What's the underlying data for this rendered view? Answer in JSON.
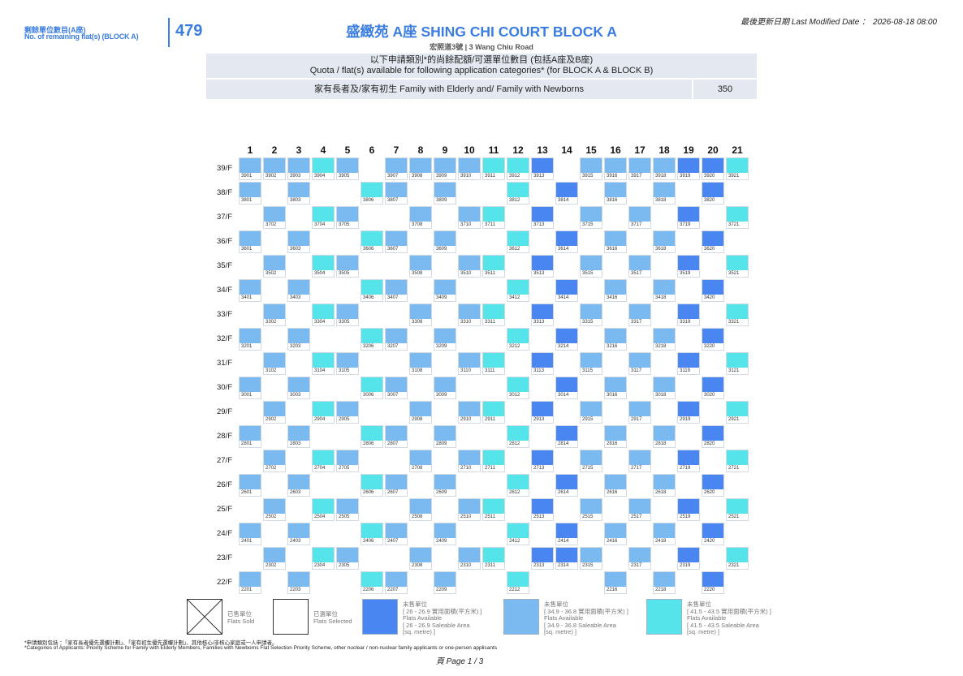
{
  "colors": {
    "accent": "#3b7de0"
  },
  "header": {
    "remaining_label_zh": "剩餘單位數目(A座)",
    "remaining_label_en": "No. of remaining flat(s) (BLOCK A)",
    "remaining_count": "479",
    "title": "盛緻苑 A座 SHING CHI COURT BLOCK A",
    "address": "宏照道3號 | 3 Wang Chiu Road",
    "last_modified_label": "最後更新日期 Last Modified Date ：",
    "last_modified_value": "2026-08-18 08:00"
  },
  "quota": {
    "heading_zh": "以下申請類別*的尚餘配額/可選單位數目 (包括A座及B座)",
    "heading_en": "Quota / flat(s) available for following application categories* (for BLOCK A & BLOCK B)",
    "rows": [
      {
        "category": "家有長者及/家有初生 Family with Elderly and/ Family with Newborns",
        "value": "350"
      }
    ]
  },
  "columns": [
    "1",
    "2",
    "3",
    "4",
    "5",
    "6",
    "7",
    "8",
    "9",
    "10",
    "11",
    "12",
    "13",
    "14",
    "15",
    "16",
    "17",
    "18",
    "19",
    "20",
    "21"
  ],
  "floors": [
    {
      "label": "39/F",
      "units": [
        {
          "no": "3901",
          "area": "34.9 - 36.8"
        },
        {
          "no": "3902",
          "area": "34.9 - 36.8"
        },
        {
          "no": "3903",
          "area": "34.9 - 36.8"
        },
        {
          "no": "3904",
          "area": "41.5 - 43.5"
        },
        {
          "no": "3905",
          "area": "34.9 - 36.8"
        },
        {
          "no": "3907",
          "area": "34.9 - 36.8"
        },
        {
          "no": "3908",
          "area": "34.9 - 36.8"
        },
        {
          "no": "3909",
          "area": "34.9 - 36.8"
        },
        {
          "no": "3910",
          "area": "34.9 - 36.8"
        },
        {
          "no": "3911",
          "area": "41.5 - 43.5"
        },
        {
          "no": "3912",
          "area": "41.5 - 43.5"
        },
        {
          "no": "3913",
          "area": "26 - 26.9"
        },
        {
          "no": "3915",
          "area": "34.9 - 36.8"
        },
        {
          "no": "3916",
          "area": "34.9 - 36.8"
        },
        {
          "no": "3917",
          "area": "34.9 - 36.8"
        },
        {
          "no": "3918",
          "area": "34.9 - 36.8"
        },
        {
          "no": "3919",
          "area": "26 - 26.9"
        },
        {
          "no": "3920",
          "area": "26 - 26.9"
        },
        {
          "no": "3921",
          "area": "41.5 - 43.5"
        }
      ]
    },
    {
      "label": "38/F",
      "units": [
        {
          "no": "3801",
          "area": "34.9 - 36.8"
        },
        {
          "no": "3803",
          "area": "34.9 - 36.8"
        },
        {
          "no": "3806",
          "area": "41.5 - 43.5"
        },
        {
          "no": "3807",
          "area": "34.9 - 36.8"
        },
        {
          "no": "3809",
          "area": "34.9 - 36.8"
        },
        {
          "no": "3812",
          "area": "41.5 - 43.5"
        },
        {
          "no": "3814",
          "area": "26 - 26.9"
        },
        {
          "no": "3816",
          "area": "34.9 - 36.8"
        },
        {
          "no": "3818",
          "area": "34.9 - 36.8"
        },
        {
          "no": "3820",
          "area": "26 - 26.9"
        }
      ]
    },
    {
      "label": "37/F",
      "units": [
        {
          "no": "3702",
          "area": "34.9 - 36.8"
        },
        {
          "no": "3704",
          "area": "41.5 - 43.5"
        },
        {
          "no": "3705",
          "area": "34.9 - 36.8"
        },
        {
          "no": "3708",
          "area": "34.9 - 36.8"
        },
        {
          "no": "3710",
          "area": "34.9 - 36.8"
        },
        {
          "no": "3711",
          "area": "41.5 - 43.5"
        },
        {
          "no": "3713",
          "area": "26 - 26.9"
        },
        {
          "no": "3715",
          "area": "34.9 - 36.8"
        },
        {
          "no": "3717",
          "area": "34.9 - 36.8"
        },
        {
          "no": "3719",
          "area": "26 - 26.9"
        },
        {
          "no": "3721",
          "area": "41.5 - 43.5"
        }
      ]
    },
    {
      "label": "36/F",
      "units": [
        {
          "no": "3601",
          "area": "34.9 - 36.8"
        },
        {
          "no": "3603",
          "area": "34.9 - 36.8"
        },
        {
          "no": "3606",
          "area": "41.5 - 43.5"
        },
        {
          "no": "3607",
          "area": "34.9 - 36.8"
        },
        {
          "no": "3609",
          "area": "34.9 - 36.8"
        },
        {
          "no": "3612",
          "area": "41.5 - 43.5"
        },
        {
          "no": "3614",
          "area": "26 - 26.9"
        },
        {
          "no": "3616",
          "area": "34.9 - 36.8"
        },
        {
          "no": "3618",
          "area": "34.9 - 36.8"
        },
        {
          "no": "3620",
          "area": "26 - 26.9"
        }
      ]
    },
    {
      "label": "35/F",
      "units": [
        {
          "no": "3502",
          "area": "34.9 - 36.8"
        },
        {
          "no": "3504",
          "area": "41.5 - 43.5"
        },
        {
          "no": "3505",
          "area": "34.9 - 36.8"
        },
        {
          "no": "3508",
          "area": "34.9 - 36.8"
        },
        {
          "no": "3510",
          "area": "34.9 - 36.8"
        },
        {
          "no": "3511",
          "area": "41.5 - 43.5"
        },
        {
          "no": "3513",
          "area": "26 - 26.9"
        },
        {
          "no": "3515",
          "area": "34.9 - 36.8"
        },
        {
          "no": "3517",
          "area": "34.9 - 36.8"
        },
        {
          "no": "3519",
          "area": "26 - 26.9"
        },
        {
          "no": "3521",
          "area": "41.5 - 43.5"
        }
      ]
    },
    {
      "label": "34/F",
      "units": [
        {
          "no": "3401",
          "area": "34.9 - 36.8"
        },
        {
          "no": "3403",
          "area": "34.9 - 36.8"
        },
        {
          "no": "3406",
          "area": "41.5 - 43.5"
        },
        {
          "no": "3407",
          "area": "34.9 - 36.8"
        },
        {
          "no": "3409",
          "area": "34.9 - 36.8"
        },
        {
          "no": "3412",
          "area": "41.5 - 43.5"
        },
        {
          "no": "3414",
          "area": "26 - 26.9"
        },
        {
          "no": "3416",
          "area": "34.9 - 36.8"
        },
        {
          "no": "3418",
          "area": "34.9 - 36.8"
        },
        {
          "no": "3420",
          "area": "26 - 26.9"
        }
      ]
    },
    {
      "label": "33/F",
      "units": [
        {
          "no": "3302",
          "area": "34.9 - 36.8"
        },
        {
          "no": "3304",
          "area": "41.5 - 43.5"
        },
        {
          "no": "3305",
          "area": "34.9 - 36.8"
        },
        {
          "no": "3308",
          "area": "34.9 - 36.8"
        },
        {
          "no": "3310",
          "area": "34.9 - 36.8"
        },
        {
          "no": "3311",
          "area": "41.5 - 43.5"
        },
        {
          "no": "3313",
          "area": "26 - 26.9"
        },
        {
          "no": "3315",
          "area": "34.9 - 36.8"
        },
        {
          "no": "3317",
          "area": "34.9 - 36.8"
        },
        {
          "no": "3319",
          "area": "26 - 26.9"
        },
        {
          "no": "3321",
          "area": "41.5 - 43.5"
        }
      ]
    },
    {
      "label": "32/F",
      "units": [
        {
          "no": "3201",
          "area": "34.9 - 36.8"
        },
        {
          "no": "3203",
          "area": "34.9 - 36.8"
        },
        {
          "no": "3206",
          "area": "41.5 - 43.5"
        },
        {
          "no": "3207",
          "area": "34.9 - 36.8"
        },
        {
          "no": "3209",
          "area": "34.9 - 36.8"
        },
        {
          "no": "3212",
          "area": "41.5 - 43.5"
        },
        {
          "no": "3214",
          "area": "26 - 26.9"
        },
        {
          "no": "3216",
          "area": "34.9 - 36.8"
        },
        {
          "no": "3218",
          "area": "34.9 - 36.8"
        },
        {
          "no": "3220",
          "area": "26 - 26.9"
        }
      ]
    },
    {
      "label": "31/F",
      "units": [
        {
          "no": "3102",
          "area": "34.9 - 36.8"
        },
        {
          "no": "3104",
          "area": "41.5 - 43.5"
        },
        {
          "no": "3105",
          "area": "34.9 - 36.8"
        },
        {
          "no": "3108",
          "area": "34.9 - 36.8"
        },
        {
          "no": "3110",
          "area": "34.9 - 36.8"
        },
        {
          "no": "3111",
          "area": "41.5 - 43.5"
        },
        {
          "no": "3113",
          "area": "26 - 26.9"
        },
        {
          "no": "3115",
          "area": "34.9 - 36.8"
        },
        {
          "no": "3117",
          "area": "34.9 - 36.8"
        },
        {
          "no": "3119",
          "area": "26 - 26.9"
        },
        {
          "no": "3121",
          "area": "41.5 - 43.5"
        }
      ]
    },
    {
      "label": "30/F",
      "units": [
        {
          "no": "3001",
          "area": "34.9 - 36.8"
        },
        {
          "no": "3003",
          "area": "34.9 - 36.8"
        },
        {
          "no": "3006",
          "area": "41.5 - 43.5"
        },
        {
          "no": "3007",
          "area": "34.9 - 36.8"
        },
        {
          "no": "3009",
          "area": "34.9 - 36.8"
        },
        {
          "no": "3012",
          "area": "41.5 - 43.5"
        },
        {
          "no": "3014",
          "area": "26 - 26.9"
        },
        {
          "no": "3016",
          "area": "34.9 - 36.8"
        },
        {
          "no": "3018",
          "area": "34.9 - 36.8"
        },
        {
          "no": "3020",
          "area": "26 - 26.9"
        }
      ]
    },
    {
      "label": "29/F",
      "units": [
        {
          "no": "2902",
          "area": "34.9 - 36.8"
        },
        {
          "no": "2904",
          "area": "41.5 - 43.5"
        },
        {
          "no": "2905",
          "area": "34.9 - 36.8"
        },
        {
          "no": "2908",
          "area": "34.9 - 36.8"
        },
        {
          "no": "2910",
          "area": "34.9 - 36.8"
        },
        {
          "no": "2911",
          "area": "41.5 - 43.5"
        },
        {
          "no": "2913",
          "area": "26 - 26.9"
        },
        {
          "no": "2915",
          "area": "34.9 - 36.8"
        },
        {
          "no": "2917",
          "area": "34.9 - 36.8"
        },
        {
          "no": "2919",
          "area": "26 - 26.9"
        },
        {
          "no": "2921",
          "area": "41.5 - 43.5"
        }
      ]
    },
    {
      "label": "28/F",
      "units": [
        {
          "no": "2801",
          "area": "34.9 - 36.8"
        },
        {
          "no": "2803",
          "area": "34.9 - 36.8"
        },
        {
          "no": "2806",
          "area": "41.5 - 43.5"
        },
        {
          "no": "2807",
          "area": "34.9 - 36.8"
        },
        {
          "no": "2809",
          "area": "34.9 - 36.8"
        },
        {
          "no": "2812",
          "area": "41.5 - 43.5"
        },
        {
          "no": "2814",
          "area": "26 - 26.9"
        },
        {
          "no": "2816",
          "area": "34.9 - 36.8"
        },
        {
          "no": "2818",
          "area": "34.9 - 36.8"
        },
        {
          "no": "2820",
          "area": "26 - 26.9"
        }
      ]
    },
    {
      "label": "27/F",
      "units": [
        {
          "no": "2702",
          "area": "34.9 - 36.8"
        },
        {
          "no": "2704",
          "area": "41.5 - 43.5"
        },
        {
          "no": "2705",
          "area": "34.9 - 36.8"
        },
        {
          "no": "2708",
          "area": "34.9 - 36.8"
        },
        {
          "no": "2710",
          "area": "34.9 - 36.8"
        },
        {
          "no": "2711",
          "area": "41.5 - 43.5"
        },
        {
          "no": "2713",
          "area": "26 - 26.9"
        },
        {
          "no": "2715",
          "area": "34.9 - 36.8"
        },
        {
          "no": "2717",
          "area": "34.9 - 36.8"
        },
        {
          "no": "2719",
          "area": "26 - 26.9"
        },
        {
          "no": "2721",
          "area": "41.5 - 43.5"
        }
      ]
    },
    {
      "label": "26/F",
      "units": [
        {
          "no": "2601",
          "area": "34.9 - 36.8"
        },
        {
          "no": "2603",
          "area": "34.9 - 36.8"
        },
        {
          "no": "2606",
          "area": "41.5 - 43.5"
        },
        {
          "no": "2607",
          "area": "34.9 - 36.8"
        },
        {
          "no": "2609",
          "area": "34.9 - 36.8"
        },
        {
          "no": "2612",
          "area": "41.5 - 43.5"
        },
        {
          "no": "2614",
          "area": "26 - 26.9"
        },
        {
          "no": "2616",
          "area": "34.9 - 36.8"
        },
        {
          "no": "2618",
          "area": "34.9 - 36.8"
        },
        {
          "no": "2620",
          "area": "26 - 26.9"
        }
      ]
    },
    {
      "label": "25/F",
      "units": [
        {
          "no": "2502",
          "area": "34.9 - 36.8"
        },
        {
          "no": "2504",
          "area": "41.5 - 43.5"
        },
        {
          "no": "2505",
          "area": "34.9 - 36.8"
        },
        {
          "no": "2508",
          "area": "34.9 - 36.8"
        },
        {
          "no": "2510",
          "area": "34.9 - 36.8"
        },
        {
          "no": "2511",
          "area": "41.5 - 43.5"
        },
        {
          "no": "2513",
          "area": "26 - 26.9"
        },
        {
          "no": "2515",
          "area": "34.9 - 36.8"
        },
        {
          "no": "2517",
          "area": "34.9 - 36.8"
        },
        {
          "no": "2519",
          "area": "26 - 26.9"
        },
        {
          "no": "2521",
          "area": "41.5 - 43.5"
        }
      ]
    },
    {
      "label": "24/F",
      "units": [
        {
          "no": "2401",
          "area": "34.9 - 36.8"
        },
        {
          "no": "2403",
          "area": "34.9 - 36.8"
        },
        {
          "no": "2406",
          "area": "41.5 - 43.5"
        },
        {
          "no": "2407",
          "area": "34.9 - 36.8"
        },
        {
          "no": "2409",
          "area": "34.9 - 36.8"
        },
        {
          "no": "2412",
          "area": "41.5 - 43.5"
        },
        {
          "no": "2414",
          "area": "26 - 26.9"
        },
        {
          "no": "2416",
          "area": "34.9 - 36.8"
        },
        {
          "no": "2418",
          "area": "34.9 - 36.8"
        },
        {
          "no": "2420",
          "area": "26 - 26.9"
        }
      ]
    },
    {
      "label": "23/F",
      "units": [
        {
          "no": "2302",
          "area": "34.9 - 36.8"
        },
        {
          "no": "2304",
          "area": "41.5 - 43.5"
        },
        {
          "no": "2305",
          "area": "34.9 - 36.8"
        },
        {
          "no": "2308",
          "area": "34.9 - 36.8"
        },
        {
          "no": "2310",
          "area": "34.9 - 36.8"
        },
        {
          "no": "2311",
          "area": "41.5 - 43.5"
        },
        {
          "no": "2313",
          "area": "26 - 26.9"
        },
        {
          "no": "2314",
          "area": "26 - 26.9"
        },
        {
          "no": "2315",
          "area": "34.9 - 36.8"
        },
        {
          "no": "2317",
          "area": "34.9 - 36.8"
        },
        {
          "no": "2319",
          "area": "26 - 26.9"
        },
        {
          "no": "2321",
          "area": "41.5 - 43.5"
        }
      ]
    },
    {
      "label": "22/F",
      "units": [
        {
          "no": "2201",
          "area": "34.9 - 36.8"
        },
        {
          "no": "2203",
          "area": "34.9 - 36.8"
        },
        {
          "no": "2206",
          "area": "41.5 - 43.5"
        },
        {
          "no": "2207",
          "area": "34.9 - 36.8"
        },
        {
          "no": "2209",
          "area": "34.9 - 36.8"
        },
        {
          "no": "2212",
          "area": "41.5 - 43.5"
        },
        {
          "no": "2216",
          "area": "34.9 - 36.8"
        },
        {
          "no": "2218",
          "area": "34.9 - 36.8"
        },
        {
          "no": "2220",
          "area": "26 - 26.9"
        }
      ]
    }
  ],
  "legend": {
    "sold": {
      "zh": "已售單位",
      "en": "Flats Sold"
    },
    "selected": {
      "zh": "已選單位",
      "en": "Flats Selected"
    },
    "available": [
      {
        "range": "26 - 26.9",
        "color": "#4a86f2",
        "zh": "未售單位",
        "zh_area": "[ 26 - 26.9 實用面積(平方米) ]",
        "en": "Flats Available",
        "en_area": "[ 26 - 26.9 Saleable Area",
        "en_unit": "[sq. metre) ]"
      },
      {
        "range": "34.9 - 36.8",
        "color": "#7bbaf0",
        "zh": "未售單位",
        "zh_area": "[ 34.9 - 36.8 實用面積(平方米) ]",
        "en": "Flats Available",
        "en_area": "[ 34.9 - 36.8 Saleable Area",
        "en_unit": "[sq. metre) ]"
      },
      {
        "range": "41.5 - 43.5",
        "color": "#55e4ea",
        "zh": "未售單位",
        "zh_area": "[ 41.5 - 43.5 實用面積(平方米) ]",
        "en": "Flats Available",
        "en_area": "[ 41.5 - 43.5 Saleable Area",
        "en_unit": "[sq. metre) ]"
      }
    ]
  },
  "footnote": {
    "zh": "*申請類別包括 ：「家有長者優先選樓計劃」、「家有初生優先選樓計劃」、其他核心/非核心家庭或一人申請者。",
    "en": "*Categories of Applicants: Priority Scheme for Family with Elderly Members, Families with Newborns Flat Selection Priority Scheme, other nuclear / non-nuclear family applicants or one-person applicants"
  },
  "page": "頁 Page 1 / 3"
}
